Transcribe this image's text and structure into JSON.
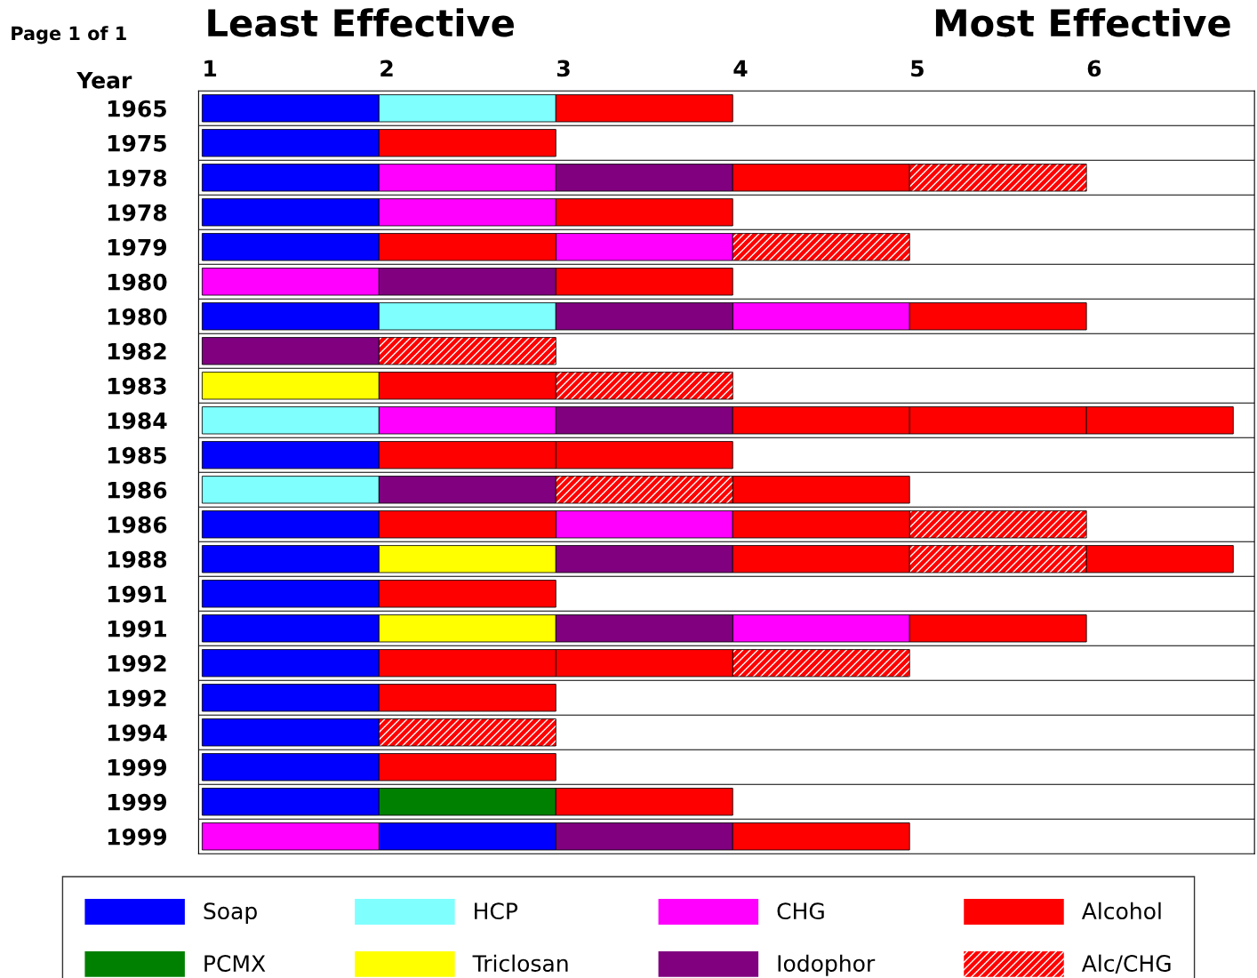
{
  "chart_data": {
    "type": "bar",
    "orientation": "horizontal",
    "ylabel": "Year",
    "annotations": [
      "Page 1 of 1",
      "Least Effective",
      "Most Effective"
    ],
    "categories": [
      "1965",
      "1975",
      "1978",
      "1978",
      "1979",
      "1980",
      "1980",
      "1982",
      "1983",
      "1984",
      "1985",
      "1986",
      "1986",
      "1988",
      "1991",
      "1991",
      "1992",
      "1992",
      "1994",
      "1999",
      "1999",
      "1999"
    ],
    "xlim": [
      0.98,
      6.95
    ],
    "xticks": [
      1,
      2,
      3,
      4,
      5,
      6
    ],
    "grid": false,
    "legend": "bottom",
    "series": [
      {
        "name": "Soap",
        "color": "#0000ff",
        "base": [
          1,
          1,
          1,
          1,
          1,
          null,
          1,
          null,
          null,
          null,
          1,
          null,
          1,
          1,
          1,
          1,
          1,
          1,
          1,
          1,
          1,
          2
        ],
        "values": [
          1,
          1,
          1,
          1,
          1,
          null,
          1,
          null,
          null,
          null,
          1,
          null,
          1,
          1,
          1,
          1,
          1,
          1,
          1,
          1,
          1,
          1
        ]
      },
      {
        "name": "PCMX",
        "color": "#008000",
        "base": [
          null,
          null,
          null,
          null,
          null,
          null,
          null,
          null,
          null,
          null,
          null,
          null,
          null,
          null,
          null,
          null,
          null,
          null,
          null,
          null,
          2,
          null
        ],
        "values": [
          null,
          null,
          null,
          null,
          null,
          null,
          null,
          null,
          null,
          null,
          null,
          null,
          null,
          null,
          null,
          null,
          null,
          null,
          null,
          null,
          1,
          null
        ]
      },
      {
        "name": "HCP",
        "color": "#80ffff",
        "base": [
          2,
          null,
          null,
          null,
          null,
          null,
          2,
          null,
          null,
          1,
          null,
          1,
          null,
          null,
          null,
          null,
          null,
          null,
          null,
          null,
          null,
          null
        ],
        "values": [
          1,
          null,
          null,
          null,
          null,
          null,
          1,
          null,
          null,
          1,
          null,
          1,
          null,
          null,
          null,
          null,
          null,
          null,
          null,
          null,
          null,
          null
        ]
      },
      {
        "name": "Triclosan",
        "color": "#ffff00",
        "base": [
          null,
          null,
          null,
          null,
          null,
          null,
          null,
          null,
          1,
          null,
          null,
          null,
          null,
          2,
          null,
          2,
          null,
          null,
          null,
          null,
          null,
          null
        ],
        "values": [
          null,
          null,
          null,
          null,
          null,
          null,
          null,
          null,
          1,
          null,
          null,
          null,
          null,
          1,
          null,
          1,
          null,
          null,
          null,
          null,
          null,
          null
        ]
      },
      {
        "name": "CHG",
        "color": "#ff00ff",
        "base": [
          null,
          null,
          2,
          2,
          3,
          1,
          4,
          null,
          null,
          2,
          null,
          null,
          3,
          null,
          null,
          4,
          null,
          null,
          null,
          null,
          null,
          1
        ],
        "values": [
          null,
          null,
          1,
          1,
          1,
          1,
          1,
          null,
          null,
          1,
          null,
          null,
          1,
          null,
          null,
          1,
          null,
          null,
          null,
          null,
          null,
          1
        ]
      },
      {
        "name": "Iodophor",
        "color": "#800080",
        "base": [
          null,
          null,
          3,
          null,
          null,
          2,
          3,
          1,
          null,
          3,
          null,
          2,
          null,
          3,
          null,
          3,
          null,
          null,
          null,
          null,
          null,
          3
        ],
        "values": [
          null,
          null,
          1,
          null,
          null,
          1,
          1,
          1,
          null,
          1,
          null,
          1,
          null,
          1,
          null,
          1,
          null,
          null,
          null,
          null,
          null,
          1
        ]
      },
      {
        "name": "Alcohol",
        "color": "#ff0000",
        "base": [
          3,
          2,
          4,
          3,
          2,
          3,
          5,
          null,
          2,
          4,
          2,
          4,
          2,
          4,
          2,
          5,
          2,
          2,
          null,
          2,
          3,
          4
        ],
        "values": [
          1,
          1,
          1,
          1,
          1,
          1,
          1,
          null,
          1,
          1,
          1,
          1,
          1,
          1,
          1,
          1,
          1,
          1,
          null,
          1,
          1,
          1
        ]
      },
      {
        "name": "Alc/CHG",
        "color": "#ff0000",
        "base": [
          null,
          null,
          5,
          null,
          4,
          null,
          null,
          2,
          3,
          null,
          null,
          3,
          5,
          5,
          null,
          null,
          4,
          null,
          2,
          null,
          null,
          null
        ],
        "values": [
          null,
          null,
          1,
          null,
          1,
          null,
          null,
          1,
          1,
          null,
          null,
          1,
          1,
          1,
          null,
          null,
          1,
          null,
          1,
          null,
          null,
          null
        ]
      },
      {
        "color": "#ff0000",
        "base": [
          null,
          null,
          null,
          null,
          null,
          null,
          null,
          null,
          null,
          5,
          3,
          null,
          4,
          6,
          null,
          null,
          3,
          null,
          null,
          null,
          null,
          null
        ],
        "values": [
          null,
          null,
          null,
          null,
          null,
          null,
          null,
          null,
          null,
          1,
          1,
          null,
          1,
          0.83,
          null,
          null,
          1,
          null,
          null,
          null,
          null,
          null
        ]
      },
      {
        "color": "#ff0000",
        "base": [
          null,
          null,
          null,
          null,
          null,
          null,
          null,
          null,
          null,
          6,
          null,
          null,
          null,
          null,
          null,
          null,
          null,
          null,
          null,
          null,
          null,
          null
        ],
        "values": [
          null,
          null,
          null,
          null,
          null,
          null,
          null,
          null,
          null,
          0.83,
          null,
          null,
          null,
          null,
          null,
          null,
          null,
          null,
          null,
          null,
          null,
          null
        ]
      }
    ]
  }
}
